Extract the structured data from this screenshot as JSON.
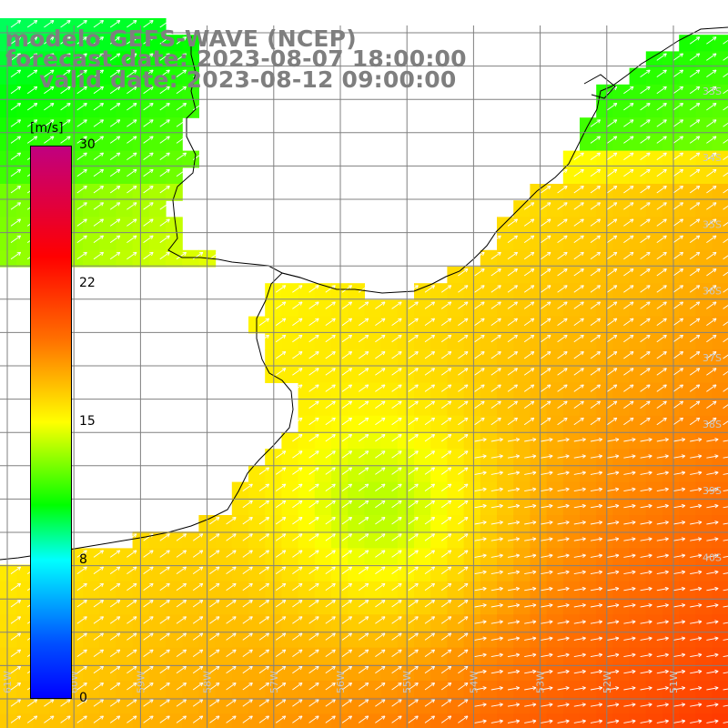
{
  "header": {
    "line1": "modelo GEFS-WAVE (NCEP)",
    "line2": "forecast date: 2023-08-07 18:00:00",
    "line3": "valid date: 2023-08-12 09:00:00"
  },
  "colorbar": {
    "unit": "[m/s]",
    "ticks": [
      "30",
      "22",
      "15",
      "8",
      "0"
    ],
    "min": 0,
    "max": 30,
    "colors": [
      "#0000ff",
      "#0050ff",
      "#00ffff",
      "#00ff00",
      "#ffff00",
      "#ff7000",
      "#ff0000",
      "#c00080"
    ]
  },
  "map": {
    "lon_labels": [
      "61W",
      "60W",
      "59W",
      "58W",
      "57W",
      "56W",
      "55W",
      "54W",
      "53W",
      "52W",
      "51W"
    ],
    "lat_labels": [
      "33S",
      "34S",
      "35S",
      "36S",
      "37S",
      "38S",
      "39S",
      "40S"
    ],
    "land_color": "#ffffff",
    "coast_color": "#000000",
    "grid_color": "#808080",
    "arrow_color": "#ffffff"
  }
}
